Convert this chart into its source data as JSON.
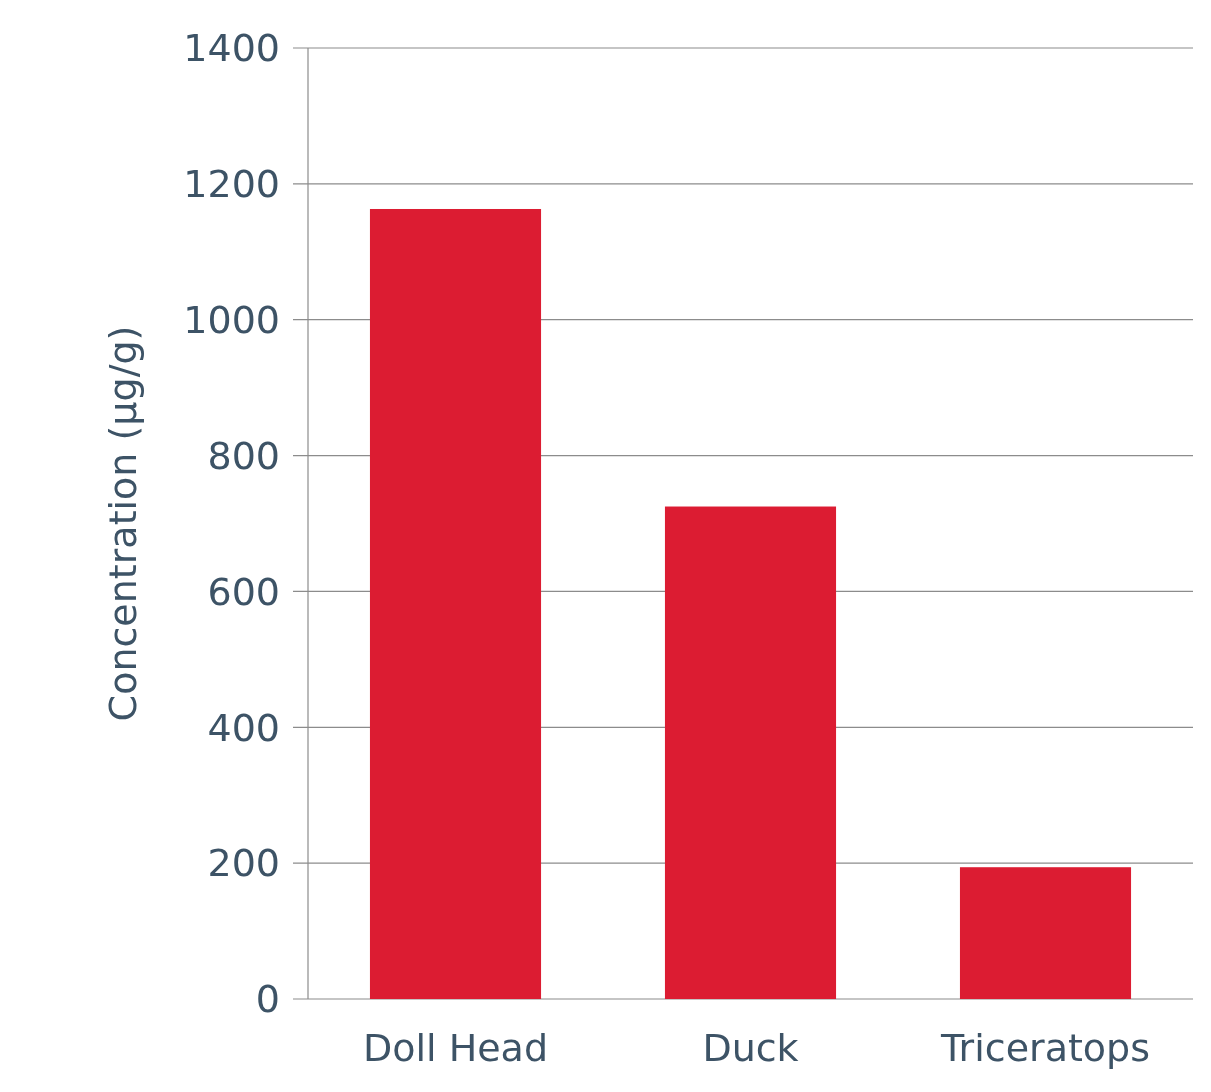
{
  "chart_data": {
    "type": "bar",
    "ylabel": "Concentration (µg/g)",
    "categories": [
      "Doll Head",
      "Duck",
      "Triceratops"
    ],
    "values": [
      1163,
      725,
      194
    ],
    "color": "#dc1c32",
    "ylim": [
      0,
      1400
    ],
    "yticks": [
      0,
      200,
      400,
      600,
      800,
      1000,
      1200,
      1400
    ],
    "grid": "y"
  }
}
